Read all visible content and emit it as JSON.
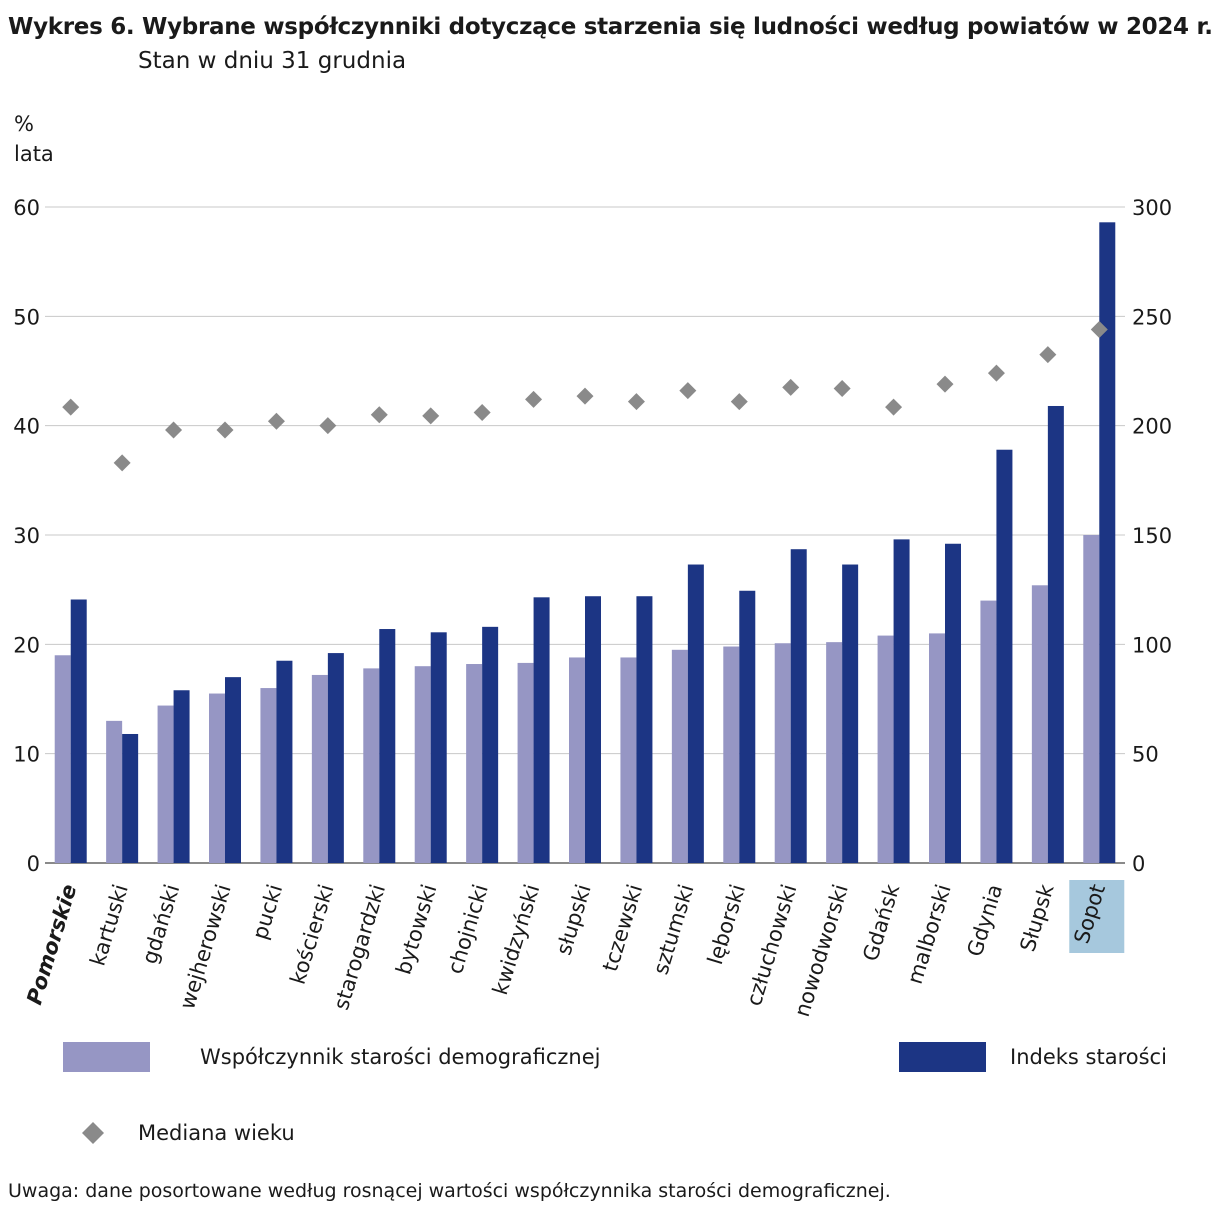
{
  "title": "Wykres 6. Wybrane współczynniki dotyczące starzenia się ludności według powiatów w 2024 r.",
  "subtitle": "Stan w dniu 31 grudnia",
  "left_axis_units": [
    "%",
    "lata"
  ],
  "note": "Uwaga: dane posortowane według rosnącej wartości współczynnika starości demograficznej.",
  "colors": {
    "wspolczynnik": "#9696c4",
    "indeks": "#1c3584",
    "mediana": "#8a8a8a",
    "gridline": "#c8c8c8",
    "highlight": "#a6c8dd"
  },
  "chart_data": {
    "type": "bar",
    "categories": [
      "Pomorskie",
      "kartuski",
      "gdański",
      "wejherowski",
      "pucki",
      "kościerski",
      "starogardzki",
      "bytowski",
      "chojnicki",
      "kwidzyński",
      "słupski",
      "tczewski",
      "sztumski",
      "lęborski",
      "człuchowski",
      "nowodworski",
      "Gdańsk",
      "malborski",
      "Gdynia",
      "Słupsk",
      "Sopot"
    ],
    "bold_category": "Pomorskie",
    "highlight_category": "Sopot",
    "y_left": {
      "ylim": [
        0,
        60
      ],
      "ticks": [
        0,
        10,
        20,
        30,
        40,
        50,
        60
      ]
    },
    "y_right": {
      "ylim": [
        0,
        300
      ],
      "ticks": [
        0,
        50,
        100,
        150,
        200,
        250,
        300
      ]
    },
    "series": [
      {
        "name": "Współczynnik starości demograficznej",
        "type": "bar",
        "axis": "left",
        "values": [
          19.0,
          13.0,
          14.4,
          15.5,
          16.0,
          17.2,
          17.8,
          18.0,
          18.2,
          18.3,
          18.8,
          18.8,
          19.5,
          19.8,
          20.1,
          20.2,
          20.8,
          21.0,
          24.0,
          25.4,
          30.0
        ]
      },
      {
        "name": "Indeks starości",
        "type": "bar",
        "axis": "right",
        "values": [
          120.5,
          59.0,
          79.0,
          85.0,
          92.5,
          96.0,
          107.0,
          105.5,
          108.0,
          121.5,
          122.0,
          122.0,
          136.5,
          124.5,
          143.5,
          136.5,
          148.0,
          146.0,
          189.0,
          209.0,
          293.0
        ]
      },
      {
        "name": "Mediana wieku",
        "type": "scatter",
        "axis": "left",
        "values": [
          41.7,
          36.6,
          39.6,
          39.6,
          40.4,
          40.0,
          41.0,
          40.9,
          41.2,
          42.4,
          42.7,
          42.2,
          43.2,
          42.2,
          43.5,
          43.4,
          41.7,
          43.8,
          44.8,
          46.5,
          48.8
        ]
      }
    ],
    "legend": [
      "Współczynnik starości demograficznej",
      "Indeks starości",
      "Mediana wieku"
    ]
  }
}
